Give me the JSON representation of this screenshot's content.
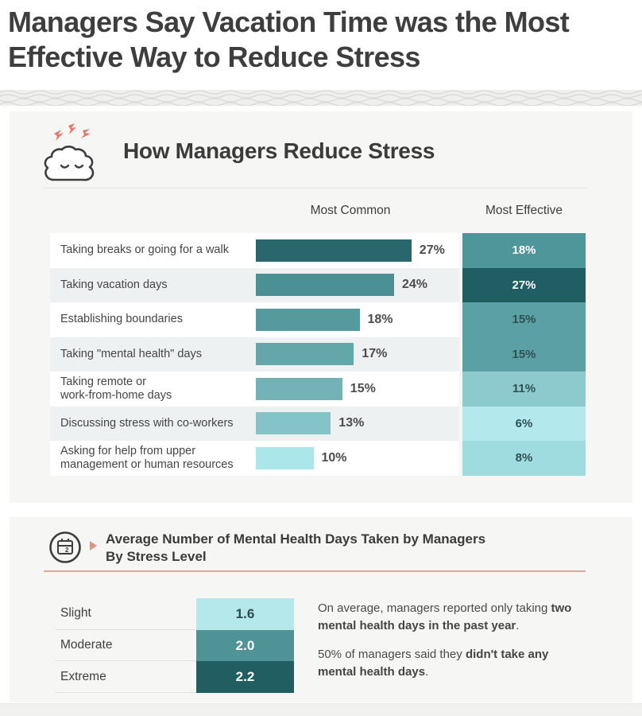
{
  "page": {
    "title": "Managers Say Vacation Time was the Most Effective Way to Reduce Stress"
  },
  "stress_chart": {
    "title": "How Managers Reduce Stress",
    "icon": "brain-cloud-icon",
    "columns": {
      "common": "Most Common",
      "effective": "Most Effective"
    },
    "rows": [
      {
        "label_line1": "Taking breaks or going for a walk",
        "label_line2": "",
        "common": 27,
        "common_label": "27%",
        "effective": 18,
        "effective_label": "18%",
        "bar_color": "#2a676c",
        "cell_color": "#4f969a",
        "cell_text_color": "#ffffff"
      },
      {
        "label_line1": "Taking vacation days",
        "label_line2": "",
        "common": 24,
        "common_label": "24%",
        "effective": 27,
        "effective_label": "27%",
        "bar_color": "#4b9094",
        "cell_color": "#1f5e62",
        "cell_text_color": "#ffffff"
      },
      {
        "label_line1": "Establishing boundaries",
        "label_line2": "",
        "common": 18,
        "common_label": "18%",
        "effective": 15,
        "effective_label": "15%",
        "bar_color": "#579a9e",
        "cell_color": "#5ba0a4",
        "cell_text_color": "#2d5154"
      },
      {
        "label_line1": "Taking \"mental health\" days",
        "label_line2": "",
        "common": 17,
        "common_label": "17%",
        "effective": 15,
        "effective_label": "15%",
        "bar_color": "#64a6aa",
        "cell_color": "#5ba0a4",
        "cell_text_color": "#2d5154"
      },
      {
        "label_line1": "Taking remote or",
        "label_line2": "work-from-home days",
        "common": 15,
        "common_label": "15%",
        "effective": 11,
        "effective_label": "11%",
        "bar_color": "#73b3b7",
        "cell_color": "#8ccace",
        "cell_text_color": "#2d5154"
      },
      {
        "label_line1": "Discussing stress with co-workers",
        "label_line2": "",
        "common": 13,
        "common_label": "13%",
        "effective": 6,
        "effective_label": "6%",
        "bar_color": "#84c3c7",
        "cell_color": "#b3e9ec",
        "cell_text_color": "#2d5154"
      },
      {
        "label_line1": "Asking for help from upper",
        "label_line2": "management or human resources",
        "common": 10,
        "common_label": "10%",
        "effective": 8,
        "effective_label": "8%",
        "bar_color": "#abe7ea",
        "cell_color": "#9fdce0",
        "cell_text_color": "#2d5154"
      }
    ]
  },
  "mental_days": {
    "title_line1": "Average Number of Mental Health Days Taken by Managers",
    "title_line2": "By Stress Level",
    "icon": "calendar-icon",
    "rows": [
      {
        "label": "Slight",
        "value": "1.6",
        "color": "#b5e8eb",
        "text_color": "#2b4a4d"
      },
      {
        "label": "Moderate",
        "value": "2.0",
        "color": "#4f9396",
        "text_color": "#ffffff"
      },
      {
        "label": "Extreme",
        "value": "2.2",
        "color": "#205e62",
        "text_color": "#ffffff"
      }
    ],
    "notes": [
      {
        "parts": [
          {
            "text": "On average, managers reported only taking ",
            "bold": false
          },
          {
            "text": "two mental health days in the past year",
            "bold": true
          },
          {
            "text": ".",
            "bold": false
          }
        ]
      },
      {
        "parts": [
          {
            "text": "50% of managers said they ",
            "bold": false
          },
          {
            "text": "didn't take any mental health days",
            "bold": true
          },
          {
            "text": ".",
            "bold": false
          }
        ]
      }
    ]
  },
  "accent_colors": {
    "bolt_salmon": "#e0796b",
    "underline_salmon": "#d9a99d",
    "dark_teal": "#1f5e62",
    "light_cyan": "#b3e9ec"
  },
  "chart_data": [
    {
      "type": "bar",
      "orientation": "horizontal",
      "title": "How Managers Reduce Stress",
      "categories": [
        "Taking breaks or going for a walk",
        "Taking vacation days",
        "Establishing boundaries",
        "Taking \"mental health\" days",
        "Taking remote or work-from-home days",
        "Discussing stress with co-workers",
        "Asking for help from upper management or human resources"
      ],
      "series": [
        {
          "name": "Most Common",
          "values": [
            27,
            24,
            18,
            17,
            15,
            13,
            10
          ]
        },
        {
          "name": "Most Effective",
          "values": [
            18,
            27,
            15,
            15,
            11,
            6,
            8
          ]
        }
      ],
      "unit": "%",
      "xlim": [
        0,
        30
      ],
      "grid": false,
      "legend_position": "column-headers"
    },
    {
      "type": "table",
      "title": "Average Number of Mental Health Days Taken by Managers By Stress Level",
      "categories": [
        "Slight",
        "Moderate",
        "Extreme"
      ],
      "values": [
        1.6,
        2.0,
        2.2
      ],
      "unit": "days"
    }
  ]
}
